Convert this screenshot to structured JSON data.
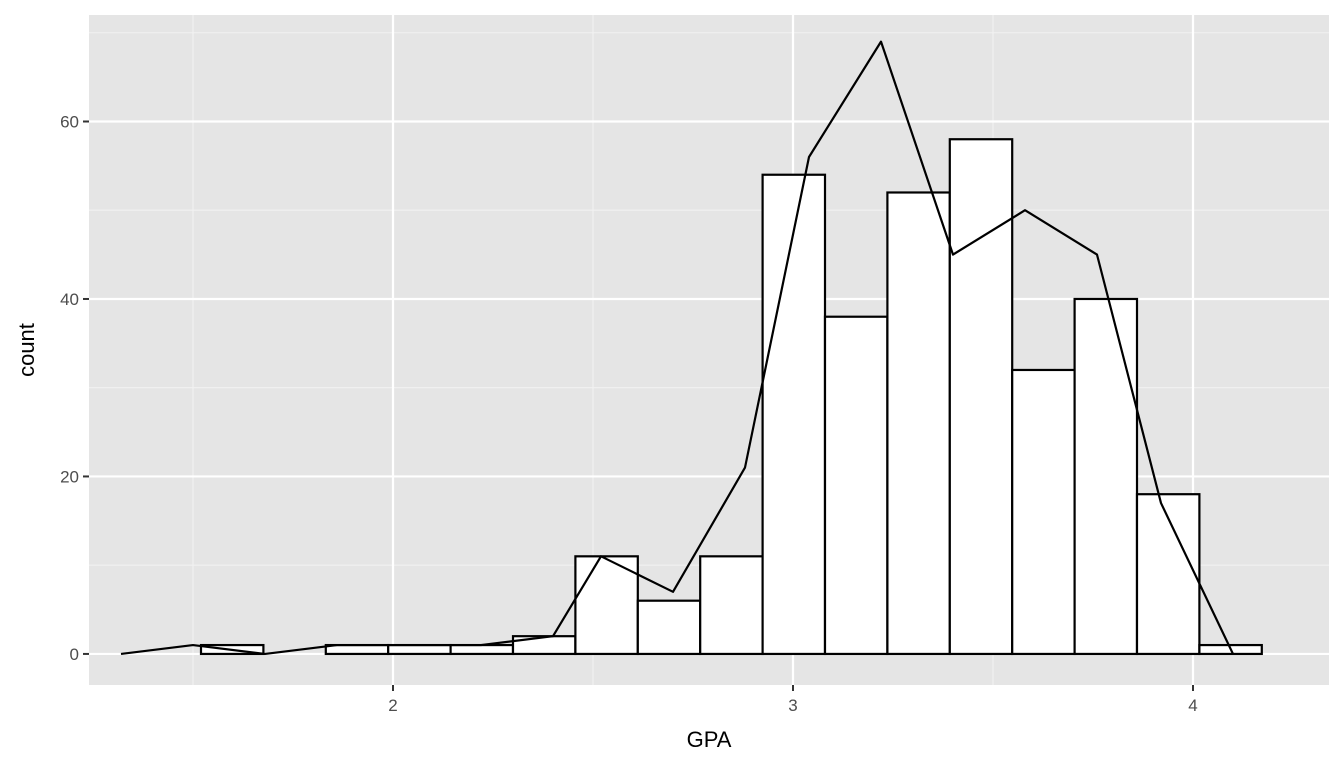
{
  "chart_data": {
    "type": "bar",
    "title": "",
    "xlabel": "GPA",
    "ylabel": "count",
    "xlim": [
      1.24,
      4.34
    ],
    "ylim": [
      -3.5,
      72
    ],
    "x_ticks": [
      2,
      3,
      4
    ],
    "x_tick_labels": [
      "2",
      "3",
      "4"
    ],
    "y_ticks": [
      0,
      20,
      40,
      60
    ],
    "y_tick_labels": [
      "0",
      "20",
      "40",
      "60"
    ],
    "grid": true,
    "legend": "none",
    "bin_width": 0.156,
    "histogram": {
      "bin_starts": [
        1.52,
        1.832,
        1.988,
        2.144,
        2.3,
        2.456,
        2.612,
        2.768,
        2.924,
        3.08,
        3.236,
        3.392,
        3.548,
        3.704,
        3.86,
        4.016
      ],
      "bin_ends": [
        1.676,
        1.988,
        2.144,
        2.3,
        2.456,
        2.612,
        2.768,
        2.924,
        3.08,
        3.236,
        3.392,
        3.548,
        3.704,
        3.86,
        4.016,
        4.172
      ],
      "counts": [
        1,
        1,
        1,
        1,
        2,
        11,
        6,
        11,
        54,
        38,
        52,
        58,
        32,
        40,
        18,
        1
      ]
    },
    "frequency_polygon": {
      "x": [
        1.32,
        1.5,
        1.68,
        1.86,
        2.04,
        2.22,
        2.4,
        2.52,
        2.7,
        2.88,
        3.04,
        3.22,
        3.4,
        3.58,
        3.76,
        3.92,
        4.1
      ],
      "y": [
        0,
        1,
        0,
        1,
        1,
        1,
        2,
        11,
        7,
        21,
        56,
        69,
        45,
        50,
        45,
        17,
        0
      ]
    },
    "colors": {
      "panel_background": "#e5e5e5",
      "grid_major": "#ffffff",
      "grid_minor": "#f2f2f2",
      "bar_fill": "#ffffff",
      "bar_outline": "#000000",
      "line": "#000000",
      "tick_label": "#4d4d4d"
    }
  }
}
